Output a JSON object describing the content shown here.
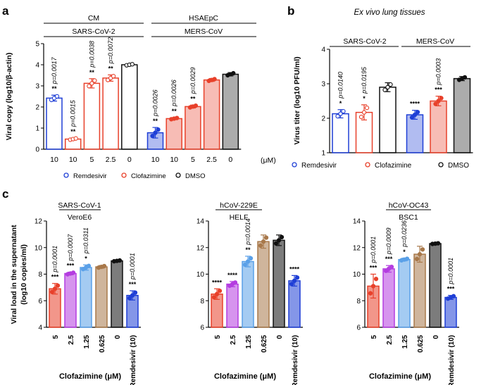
{
  "colors": {
    "blue": "#1f3fd6",
    "red": "#e8402a",
    "black": "#111111",
    "brown": "#a8784a",
    "lightblue": "#5aa0e8",
    "purple": "#b43de0"
  },
  "panel_a": {
    "label": "a",
    "groups": [
      {
        "top": "CM",
        "sub": "SARS-CoV-2"
      },
      {
        "top": "HSAEpC",
        "sub": "MERS-CoV"
      }
    ],
    "unit": "(μM)",
    "legend": [
      "Remdesivir",
      "Clofazimine",
      "DMSO"
    ]
  },
  "panel_b": {
    "label": "b",
    "title": "Ex vivo lung tissues",
    "groups": [
      "SARS-CoV-2",
      "MERS-CoV"
    ],
    "legend": [
      "Remdesivir",
      "Clofazimine",
      "DMSO"
    ]
  },
  "panel_c": {
    "label": "c",
    "xlabel": "Clofazimine (μM)",
    "ylabel_line1": "Viral load in the supernatant",
    "ylabel_line2": "(log10 copies/ml)"
  },
  "chart_data": [
    {
      "id": "a",
      "type": "bar",
      "ylabel": "Viral copy (log10/β-actin)",
      "ylim": [
        0,
        5
      ],
      "yticks": [
        "0",
        "1",
        "2",
        "3",
        "4",
        "5"
      ],
      "categories": [
        "10",
        "10",
        "5",
        "2.5",
        "0",
        "10",
        "10",
        "5",
        "2.5",
        "0"
      ],
      "values": [
        2.42,
        0.48,
        3.12,
        3.37,
        4.0,
        0.78,
        1.45,
        2.02,
        3.28,
        3.55
      ],
      "errors": [
        0.14,
        0.05,
        0.22,
        0.15,
        0.04,
        0.25,
        0.05,
        0.07,
        0.07,
        0.08
      ],
      "colors": [
        "blue",
        "red",
        "red",
        "red",
        "black",
        "blue",
        "red",
        "red",
        "red",
        "black"
      ],
      "fills": [
        false,
        false,
        false,
        false,
        false,
        true,
        true,
        true,
        true,
        true
      ],
      "stars": [
        "**",
        "**",
        "**",
        "**",
        "",
        "**",
        "**",
        "**",
        "",
        ""
      ],
      "pvalues": [
        "p=0.0017",
        "p=0.0015",
        "p=0.0038",
        "p=0.0072",
        "",
        "p=0.0026",
        "p=0.0026",
        "p=0.0029",
        "",
        ""
      ]
    },
    {
      "id": "b",
      "type": "bar",
      "ylabel": "Virus titer (log10 PFU/ml)",
      "ylim": [
        1,
        4
      ],
      "yticks": [
        "1",
        "2",
        "3",
        "4"
      ],
      "categories": [
        "",
        "",
        "",
        "",
        "",
        ""
      ],
      "values": [
        2.13,
        2.17,
        2.9,
        2.1,
        2.5,
        3.15
      ],
      "errors": [
        0.12,
        0.22,
        0.13,
        0.13,
        0.14,
        0.06
      ],
      "colors": [
        "blue",
        "red",
        "black",
        "blue",
        "red",
        "black"
      ],
      "fills": [
        false,
        false,
        false,
        true,
        true,
        true
      ],
      "stars": [
        "*",
        "*",
        "",
        "****",
        "***",
        ""
      ],
      "pvalues": [
        "p=0.0140",
        "p=0.0195",
        "",
        "",
        "p=0.0003",
        ""
      ]
    },
    {
      "id": "c1",
      "type": "bar",
      "title": "SARS-CoV-1",
      "subtitle": "VeroE6",
      "ylim": [
        4,
        12
      ],
      "yticks": [
        "4",
        "6",
        "8",
        "10",
        "12"
      ],
      "categories": [
        "5",
        "2.5",
        "1.25",
        "0.625",
        "0",
        "Remdesivir (10)"
      ],
      "values": [
        6.9,
        8.05,
        8.5,
        8.55,
        9.0,
        6.4
      ],
      "errors": [
        0.4,
        0.1,
        0.2,
        0.1,
        0.05,
        0.35
      ],
      "colors": [
        "red",
        "purple",
        "lightblue",
        "brown",
        "black",
        "blue"
      ],
      "stars": [
        "***",
        "***",
        "*",
        "",
        "",
        "***"
      ],
      "pvalues": [
        "p=0.0001",
        "p=0.0007",
        "p=0.0311",
        "",
        "",
        "p=0.0001"
      ]
    },
    {
      "id": "c2",
      "type": "bar",
      "title": "hCoV-229E",
      "subtitle": "HELF",
      "ylim": [
        6,
        14
      ],
      "yticks": [
        "6",
        "8",
        "10",
        "12",
        "14"
      ],
      "categories": [
        "5",
        "2.5",
        "1.25",
        "0.625",
        "0",
        "Remdesivir (10)"
      ],
      "values": [
        8.5,
        9.25,
        10.95,
        12.45,
        12.55,
        9.5
      ],
      "errors": [
        0.4,
        0.2,
        0.4,
        0.5,
        0.4,
        0.4
      ],
      "colors": [
        "red",
        "purple",
        "lightblue",
        "brown",
        "black",
        "blue"
      ],
      "stars": [
        "****",
        "****",
        "**",
        "",
        "",
        "****"
      ],
      "pvalues": [
        "",
        "",
        "p=0.0014",
        "",
        "",
        ""
      ]
    },
    {
      "id": "c3",
      "type": "bar",
      "title": "hCoV-OC43",
      "subtitle": "BSC1",
      "ylim": [
        6,
        14
      ],
      "yticks": [
        "6",
        "8",
        "10",
        "12",
        "14"
      ],
      "categories": [
        "5",
        "2.5",
        "1.25",
        "0.625",
        "0",
        "Remdesivir (10)"
      ],
      "values": [
        9.1,
        10.4,
        11.1,
        11.5,
        12.3,
        8.25
      ],
      "errors": [
        0.9,
        0.25,
        0.1,
        0.6,
        0.04,
        0.15
      ],
      "colors": [
        "red",
        "purple",
        "lightblue",
        "brown",
        "black",
        "blue"
      ],
      "stars": [
        "***",
        "***",
        "*",
        "",
        "",
        "***"
      ],
      "pvalues": [
        "p=0.0001",
        "p=0.0009",
        "p=0.0236",
        "",
        "",
        "p=0.0001"
      ]
    }
  ]
}
